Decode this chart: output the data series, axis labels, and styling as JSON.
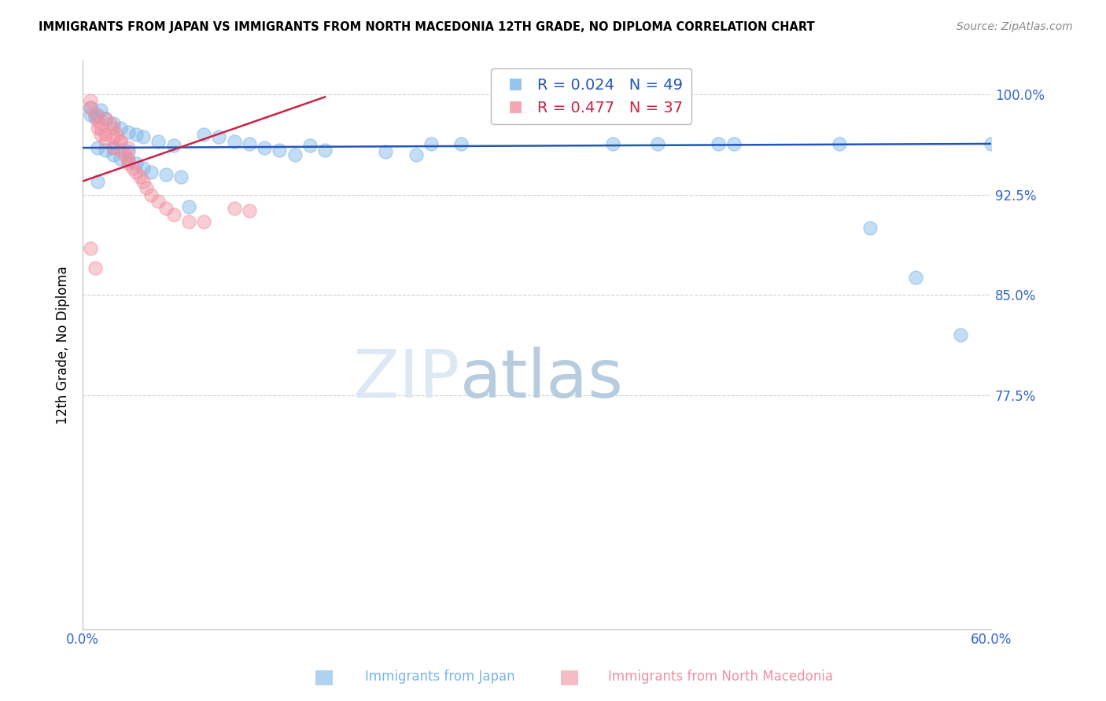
{
  "title": "IMMIGRANTS FROM JAPAN VS IMMIGRANTS FROM NORTH MACEDONIA 12TH GRADE, NO DIPLOMA CORRELATION CHART",
  "source": "Source: ZipAtlas.com",
  "ylabel_label": "12th Grade, No Diploma",
  "legend_japan": {
    "R": "0.024",
    "N": "49",
    "color": "#7aadee"
  },
  "legend_macedonia": {
    "R": "0.477",
    "N": "37",
    "color": "#f090a0"
  },
  "xlim": [
    0.0,
    0.6
  ],
  "ylim": [
    0.6,
    1.025
  ],
  "ytick_positions": [
    0.775,
    0.85,
    0.925,
    1.0
  ],
  "ytick_labels": [
    "77.5%",
    "85.0%",
    "92.5%",
    "100.0%"
  ],
  "xtick_positions": [
    0.0,
    0.1,
    0.2,
    0.3,
    0.4,
    0.5,
    0.6
  ],
  "xtick_labels": [
    "0.0%",
    "",
    "",
    "",
    "",
    "",
    "60.0%"
  ],
  "scatter_japan_x": [
    0.005,
    0.01,
    0.015,
    0.02,
    0.025,
    0.03,
    0.035,
    0.04,
    0.05,
    0.06,
    0.01,
    0.015,
    0.02,
    0.025,
    0.03,
    0.035,
    0.04,
    0.045,
    0.055,
    0.065,
    0.01,
    0.02,
    0.03,
    0.08,
    0.09,
    0.1,
    0.11,
    0.12,
    0.13,
    0.14,
    0.15,
    0.16,
    0.2,
    0.22,
    0.23,
    0.25,
    0.35,
    0.38,
    0.42,
    0.43,
    0.5,
    0.52,
    0.55,
    0.58,
    0.6,
    0.005,
    0.008,
    0.012,
    0.07
  ],
  "scatter_japan_y": [
    0.99,
    0.985,
    0.982,
    0.978,
    0.975,
    0.972,
    0.97,
    0.968,
    0.965,
    0.962,
    0.96,
    0.958,
    0.955,
    0.952,
    0.95,
    0.948,
    0.945,
    0.942,
    0.94,
    0.938,
    0.935,
    0.96,
    0.957,
    0.97,
    0.968,
    0.965,
    0.963,
    0.96,
    0.958,
    0.955,
    0.962,
    0.958,
    0.957,
    0.955,
    0.963,
    0.963,
    0.963,
    0.963,
    0.963,
    0.963,
    0.963,
    0.9,
    0.863,
    0.82,
    0.963,
    0.985,
    0.983,
    0.988,
    0.916
  ],
  "scatter_macedonia_x": [
    0.005,
    0.005,
    0.008,
    0.01,
    0.01,
    0.012,
    0.015,
    0.015,
    0.018,
    0.02,
    0.02,
    0.022,
    0.025,
    0.025,
    0.028,
    0.03,
    0.03,
    0.033,
    0.035,
    0.038,
    0.04,
    0.042,
    0.045,
    0.05,
    0.055,
    0.06,
    0.07,
    0.08,
    0.1,
    0.11,
    0.005,
    0.008,
    0.012,
    0.015,
    0.02,
    0.025,
    0.03
  ],
  "scatter_macedonia_y": [
    0.995,
    0.99,
    0.985,
    0.98,
    0.975,
    0.97,
    0.965,
    0.982,
    0.978,
    0.975,
    0.96,
    0.97,
    0.965,
    0.958,
    0.955,
    0.952,
    0.948,
    0.945,
    0.942,
    0.938,
    0.935,
    0.93,
    0.925,
    0.92,
    0.915,
    0.91,
    0.905,
    0.905,
    0.915,
    0.913,
    0.885,
    0.87,
    0.975,
    0.97,
    0.968,
    0.965,
    0.96
  ],
  "japan_line_x": [
    0.0,
    0.6
  ],
  "japan_line_y": [
    0.96,
    0.963
  ],
  "macedonia_line_x": [
    0.0,
    0.16
  ],
  "macedonia_line_y": [
    0.935,
    0.998
  ],
  "japan_color": "#7ab4e8",
  "macedonia_color": "#f090a0",
  "japan_line_color": "#2255bb",
  "macedonia_line_color": "#cc2244",
  "watermark_left": "ZIP",
  "watermark_right": "atlas",
  "background_color": "#ffffff",
  "grid_color": "#cccccc"
}
